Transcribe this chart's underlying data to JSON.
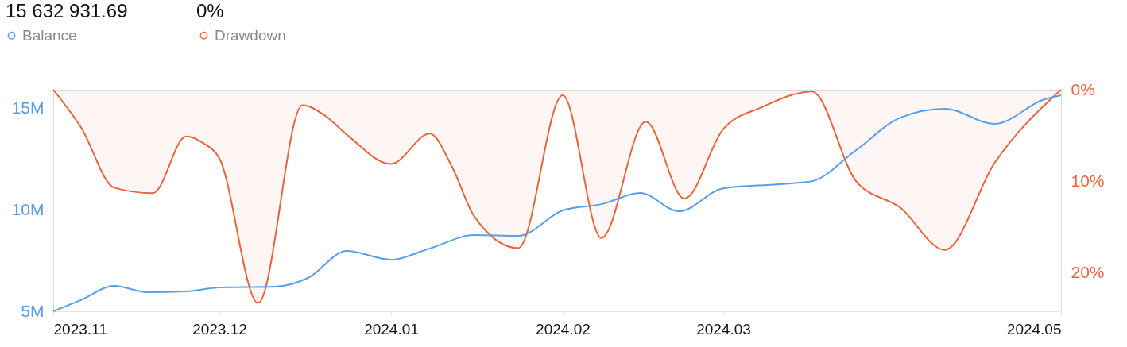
{
  "chart_data": {
    "type": "line",
    "annotations": [
      "15 632 931.69",
      "0%"
    ],
    "legend": "top left",
    "grid": false,
    "marker": "none",
    "line_style": "solid",
    "xlim": [
      "2023-11-01",
      "2024-05-01"
    ],
    "xticks": [
      {
        "value": "2023-11-01",
        "label": "2023.11"
      },
      {
        "value": "2023-12-01",
        "label": "2023.12"
      },
      {
        "value": "2024-01-01",
        "label": "2024.01"
      },
      {
        "value": "2024-02-01",
        "label": "2024.02"
      },
      {
        "value": "2024-03-01",
        "label": "2024.03"
      },
      {
        "value": "2024-05-01",
        "label": "2024.05"
      }
    ],
    "ylim": [
      5000000,
      15900000
    ],
    "yticks": [
      {
        "value": 5000000,
        "label": "5M"
      },
      {
        "value": 10000000,
        "label": "10M"
      },
      {
        "value": 15000000,
        "label": "15M"
      }
    ],
    "y2lim": [
      24.2,
      0
    ],
    "y2ticks": [
      {
        "value": 0,
        "label": "0%"
      },
      {
        "value": 10,
        "label": "10%"
      },
      {
        "value": 20,
        "label": "20%"
      }
    ],
    "series": [
      {
        "name": "Balance",
        "color": "#5b9ee8",
        "x": [
          "2023-11-01",
          "2023-11-06",
          "2023-11-12",
          "2023-11-18",
          "2023-11-25",
          "2023-12-01",
          "2023-12-11",
          "2023-12-17",
          "2023-12-24",
          "2024-01-01",
          "2024-01-08",
          "2024-01-16",
          "2024-01-24",
          "2024-02-01",
          "2024-02-08",
          "2024-02-15",
          "2024-02-22",
          "2024-03-01",
          "2024-03-11",
          "2024-03-17",
          "2024-03-25",
          "2024-04-02",
          "2024-04-10",
          "2024-04-19",
          "2024-04-28",
          "2024-05-01"
        ],
        "values": [
          5000000,
          5550000,
          6250000,
          5940000,
          5980000,
          6170000,
          6210000,
          6640000,
          7970000,
          7540000,
          8090000,
          8750000,
          8710000,
          9960000,
          10270000,
          10820000,
          9920000,
          11050000,
          11250000,
          11400000,
          12930000,
          14530000,
          14960000,
          14220000,
          15430000,
          15630000
        ]
      },
      {
        "name": "Drawdown",
        "type": "area",
        "axis": "y2",
        "color": "#e8643c",
        "x": [
          "2023-11-01",
          "2023-11-06",
          "2023-11-12",
          "2023-11-19",
          "2023-11-25",
          "2023-11-28",
          "2023-12-01",
          "2023-12-08",
          "2023-12-16",
          "2023-12-20",
          "2023-12-24",
          "2024-01-01",
          "2024-01-08",
          "2024-01-12",
          "2024-01-16",
          "2024-01-24",
          "2024-02-01",
          "2024-02-08",
          "2024-02-16",
          "2024-02-23",
          "2024-03-01",
          "2024-03-08",
          "2024-03-17",
          "2024-03-25",
          "2024-04-02",
          "2024-04-10",
          "2024-04-19",
          "2024-05-01"
        ],
        "values": [
          0,
          4.1,
          10.7,
          11.3,
          5.1,
          5.8,
          7.5,
          23.3,
          1.7,
          2.8,
          4.9,
          8.1,
          4.8,
          8.4,
          13.8,
          17.3,
          0.6,
          16.2,
          3.5,
          11.9,
          4.3,
          1.9,
          0.2,
          10,
          12.9,
          17.5,
          8,
          0
        ]
      }
    ]
  }
}
